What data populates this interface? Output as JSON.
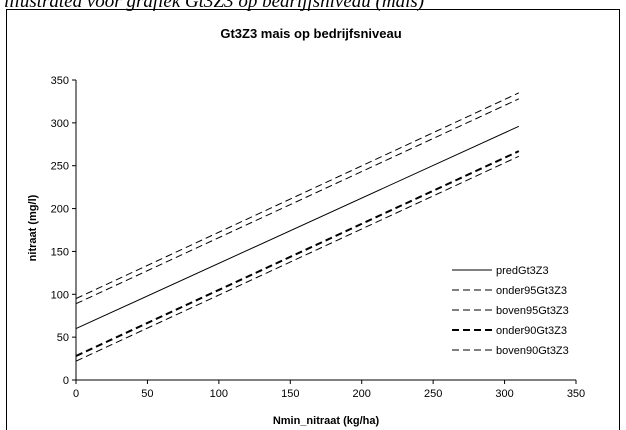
{
  "caption": "illustrated voor grafiek Gt3Z3 op bedrijfsniveau (mais)",
  "chart_data": {
    "type": "line",
    "title": "Gt3Z3 mais op bedrijfsniveau",
    "xlabel": "Nmin_nitraat (kg/ha)",
    "ylabel": "nitraat (mg/l)",
    "xlim": [
      0,
      350
    ],
    "ylim": [
      0,
      350
    ],
    "xticks": [
      "0",
      "50",
      "100",
      "150",
      "200",
      "250",
      "300",
      "350"
    ],
    "yticks": [
      "0",
      "50",
      "100",
      "150",
      "200",
      "250",
      "300",
      "350"
    ],
    "grid": false,
    "legend_position": "right",
    "series": [
      {
        "name": "predGt3Z3",
        "style": "solid",
        "x": [
          0,
          310
        ],
        "y": [
          60,
          296
        ]
      },
      {
        "name": "onder95Gt3Z3",
        "style": "dashed",
        "x": [
          0,
          310
        ],
        "y": [
          22,
          261
        ]
      },
      {
        "name": "boven95Gt3Z3",
        "style": "dashed",
        "x": [
          0,
          310
        ],
        "y": [
          95,
          335
        ]
      },
      {
        "name": "onder90Gt3Z3",
        "style": "dashed-bold",
        "x": [
          0,
          310
        ],
        "y": [
          28,
          267
        ]
      },
      {
        "name": "boven90Gt3Z3",
        "style": "dashed",
        "x": [
          0,
          310
        ],
        "y": [
          89,
          328
        ]
      }
    ]
  }
}
